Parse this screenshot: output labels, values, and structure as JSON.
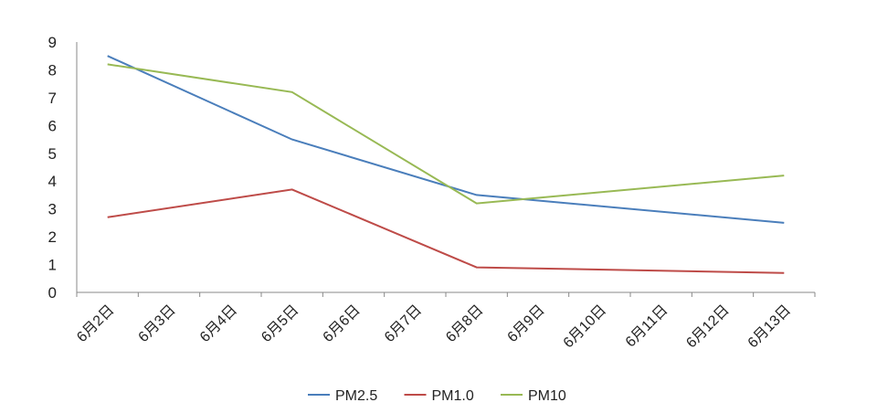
{
  "chart_data": {
    "type": "line",
    "categories": [
      "6月2日",
      "6月3日",
      "6月4日",
      "6月5日",
      "6月6日",
      "6月7日",
      "6月8日",
      "6月9日",
      "6月10日",
      "6月11日",
      "6月12日",
      "6月13日"
    ],
    "series": [
      {
        "name": "PM2.5",
        "color": "#4a7ebb",
        "points": [
          {
            "x": "6月2日",
            "y": 8.5
          },
          {
            "x": "6月5日",
            "y": 5.5
          },
          {
            "x": "6月8日",
            "y": 3.5
          },
          {
            "x": "6月13日",
            "y": 2.5
          }
        ]
      },
      {
        "name": "PM1.0",
        "color": "#be4b48",
        "points": [
          {
            "x": "6月2日",
            "y": 2.7
          },
          {
            "x": "6月5日",
            "y": 3.7
          },
          {
            "x": "6月8日",
            "y": 0.9
          },
          {
            "x": "6月13日",
            "y": 0.7
          }
        ]
      },
      {
        "name": "PM10",
        "color": "#98b954",
        "points": [
          {
            "x": "6月2日",
            "y": 8.2
          },
          {
            "x": "6月5日",
            "y": 7.2
          },
          {
            "x": "6月8日",
            "y": 3.2
          },
          {
            "x": "6月13日",
            "y": 4.2
          }
        ]
      }
    ],
    "y_ticks": [
      "0",
      "1",
      "2",
      "3",
      "4",
      "5",
      "6",
      "7",
      "8",
      "9"
    ],
    "ylim": [
      0,
      9
    ],
    "grid": false,
    "legend_position": "bottom",
    "title": "",
    "xlabel": "",
    "ylabel": ""
  }
}
